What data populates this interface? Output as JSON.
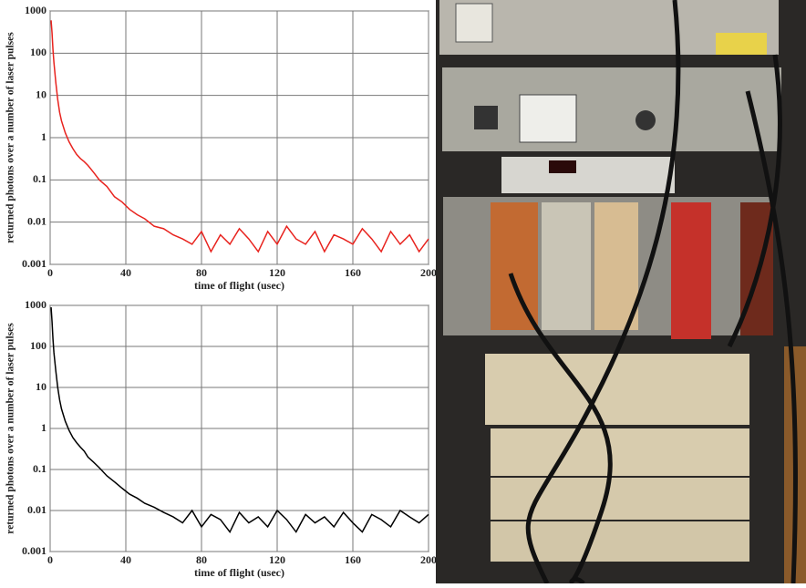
{
  "chart_data": [
    {
      "type": "line",
      "log_y": true,
      "grid": true,
      "xlabel": "time of flight (usec)",
      "ylabel": "returned photons over a number of laser pulses",
      "xlim": [
        0,
        200
      ],
      "ylim": [
        0.001,
        1000
      ],
      "xticks": [
        0,
        40,
        80,
        120,
        160,
        200
      ],
      "yticks": [
        0.001,
        0.01,
        0.1,
        1,
        10,
        100,
        1000
      ],
      "color": "#e8231e",
      "x": [
        0.5,
        1,
        1.5,
        2,
        3,
        4,
        5,
        6,
        8,
        10,
        12,
        14,
        16,
        18,
        20,
        23,
        26,
        30,
        34,
        38,
        42,
        46,
        50,
        55,
        60,
        65,
        70,
        75,
        80,
        85,
        90,
        95,
        100,
        105,
        110,
        115,
        120,
        125,
        130,
        135,
        140,
        145,
        150,
        155,
        160,
        165,
        170,
        175,
        180,
        185,
        190,
        195,
        200
      ],
      "values": [
        600,
        300,
        120,
        60,
        20,
        8,
        4,
        2.5,
        1.3,
        0.8,
        0.55,
        0.4,
        0.32,
        0.27,
        0.22,
        0.15,
        0.1,
        0.07,
        0.04,
        0.03,
        0.02,
        0.015,
        0.012,
        0.008,
        0.007,
        0.005,
        0.004,
        0.003,
        0.006,
        0.002,
        0.005,
        0.003,
        0.007,
        0.004,
        0.002,
        0.006,
        0.003,
        0.008,
        0.004,
        0.003,
        0.006,
        0.002,
        0.005,
        0.004,
        0.003,
        0.007,
        0.004,
        0.002,
        0.006,
        0.003,
        0.005,
        0.002,
        0.004
      ]
    },
    {
      "type": "line",
      "log_y": true,
      "grid": true,
      "xlabel": "time of flight (usec)",
      "ylabel": "returned photons over a number of laser pulses",
      "xlim": [
        0,
        200
      ],
      "ylim": [
        0.001,
        1000
      ],
      "xticks": [
        0,
        40,
        80,
        120,
        160,
        200
      ],
      "yticks": [
        0.001,
        0.01,
        0.1,
        1,
        10,
        100,
        1000
      ],
      "color": "#000000",
      "x": [
        0.5,
        1,
        1.5,
        2,
        3,
        4,
        5,
        6,
        8,
        10,
        12,
        14,
        16,
        18,
        20,
        23,
        26,
        30,
        34,
        38,
        42,
        46,
        50,
        55,
        60,
        65,
        70,
        75,
        80,
        85,
        90,
        95,
        100,
        105,
        110,
        115,
        120,
        125,
        130,
        135,
        140,
        145,
        150,
        155,
        160,
        165,
        170,
        175,
        180,
        185,
        190,
        195,
        200
      ],
      "values": [
        900,
        400,
        150,
        70,
        25,
        10,
        5,
        3,
        1.5,
        0.9,
        0.6,
        0.45,
        0.35,
        0.28,
        0.2,
        0.15,
        0.11,
        0.07,
        0.05,
        0.035,
        0.025,
        0.02,
        0.015,
        0.012,
        0.009,
        0.007,
        0.005,
        0.01,
        0.004,
        0.008,
        0.006,
        0.003,
        0.009,
        0.005,
        0.007,
        0.004,
        0.01,
        0.006,
        0.003,
        0.008,
        0.005,
        0.007,
        0.004,
        0.009,
        0.005,
        0.003,
        0.008,
        0.006,
        0.004,
        0.01,
        0.007,
        0.005,
        0.008
      ]
    }
  ]
}
